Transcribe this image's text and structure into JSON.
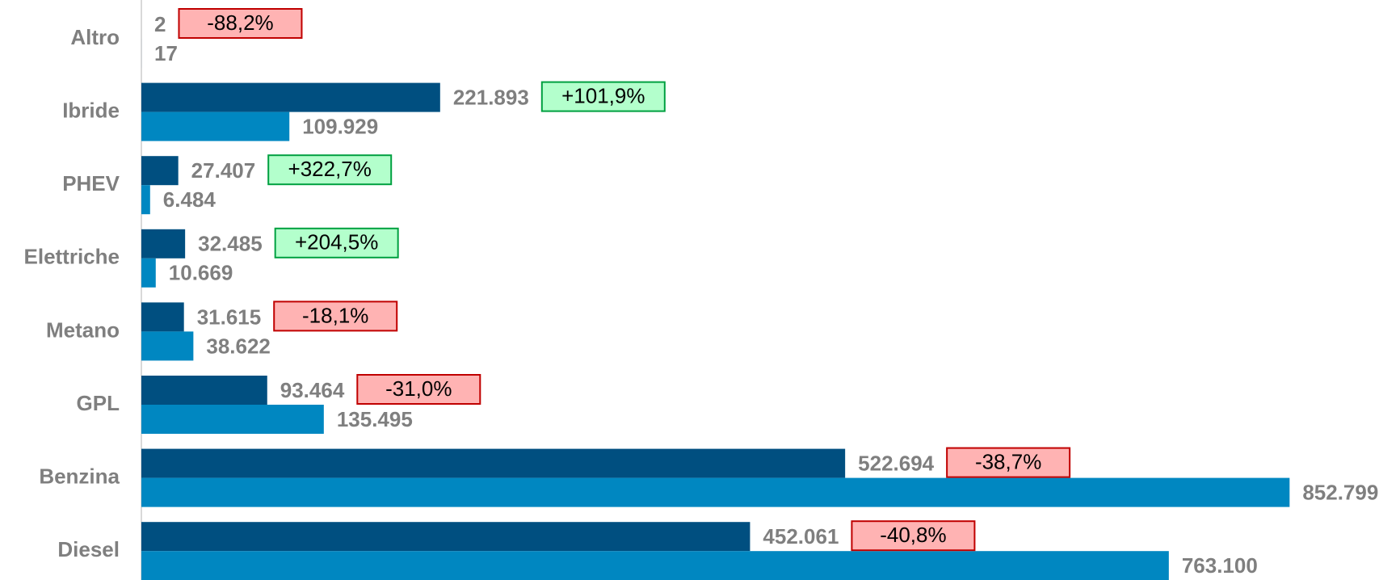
{
  "chart_data": {
    "type": "bar",
    "orientation": "horizontal",
    "categories": [
      "Altro",
      "Ibride",
      "PHEV",
      "Elettriche",
      "Metano",
      "GPL",
      "Benzina",
      "Diesel"
    ],
    "series": [
      {
        "color": "#004f80",
        "values": [
          2,
          221893,
          27407,
          32485,
          31615,
          93464,
          522694,
          452061
        ],
        "value_labels": [
          "2",
          "221.893",
          "27.407",
          "32.485",
          "31.615",
          "93.464",
          "522.694",
          "452.061"
        ]
      },
      {
        "color": "#0087c1",
        "values": [
          17,
          109929,
          6484,
          10669,
          38622,
          135495,
          852799,
          763100
        ],
        "value_labels": [
          "17",
          "109.929",
          "6.484",
          "10.669",
          "38.622",
          "135.495",
          "852.799",
          "763.100"
        ]
      }
    ],
    "changes": {
      "values": [
        -88.2,
        101.9,
        322.7,
        204.5,
        -18.1,
        -31.0,
        -38.7,
        -40.8
      ],
      "value_labels": [
        "-88,2%",
        "+101,9%",
        "+322,7%",
        "+204,5%",
        "-18,1%",
        "-31,0%",
        "-38,7%",
        "-40,8%"
      ],
      "positive_fill": "#b3ffcc",
      "positive_border": "#00a040",
      "negative_fill": "#ffb3b3",
      "negative_border": "#c00000"
    },
    "xlim": [
      0,
      915000
    ]
  }
}
